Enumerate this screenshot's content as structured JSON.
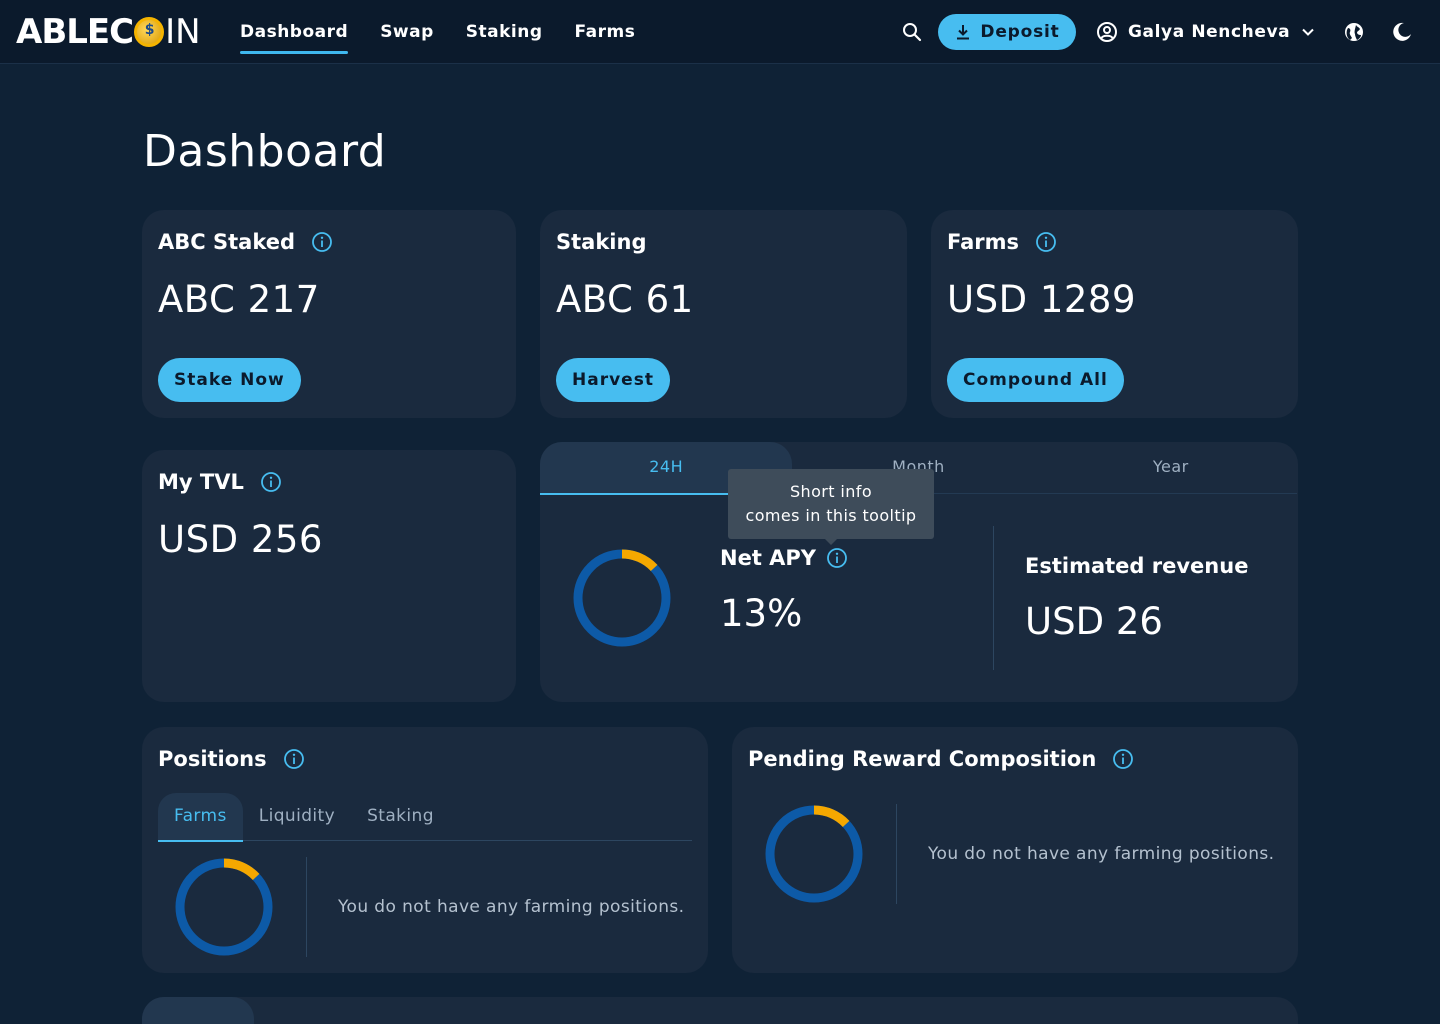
{
  "header": {
    "logo_part1": "ABLEC",
    "logo_part2": "IN",
    "nav": [
      "Dashboard",
      "Swap",
      "Staking",
      "Farms"
    ],
    "active_nav": "Dashboard",
    "deposit_label": "Deposit",
    "user_name": "Galya Nencheva"
  },
  "page": {
    "title": "Dashboard"
  },
  "cards": {
    "abc_staked": {
      "title": "ABC Staked",
      "value": "ABC 217",
      "button": "Stake Now"
    },
    "staking": {
      "title": "Staking",
      "value": "ABC 61",
      "button": "Harvest"
    },
    "farms": {
      "title": "Farms",
      "value": "USD 1289",
      "button": "Compound All"
    },
    "my_tvl": {
      "title": "My TVL",
      "value": "USD 256"
    }
  },
  "apy": {
    "tabs": [
      "24H",
      "Month",
      "Year"
    ],
    "active_tab": "24H",
    "tooltip_line1": "Short info",
    "tooltip_line2": "comes in this tooltip",
    "label": "Net APY",
    "value": "13%",
    "revenue_label": "Estimated revenue",
    "revenue_value": "USD 26",
    "donut_fraction": 0.13
  },
  "positions": {
    "title": "Positions",
    "tabs": [
      "Farms",
      "Liquidity",
      "Staking"
    ],
    "active_tab": "Farms",
    "empty_message": "You do not have any farming positions.",
    "donut_fraction": 0.13
  },
  "pending": {
    "title": "Pending Reward Composition",
    "empty_message": "You do not have any farming positions.",
    "donut_fraction": 0.13
  },
  "colors": {
    "accent": "#47bdf0",
    "donut_main": "#0d5aa7",
    "donut_highlight": "#f5a800",
    "card_bg": "#1a2a3e",
    "page_bg": "#0f2236"
  },
  "icons": [
    "search-icon",
    "download-icon",
    "user-circle-icon",
    "chevron-down-icon",
    "globe-icon",
    "moon-icon",
    "info-icon"
  ]
}
